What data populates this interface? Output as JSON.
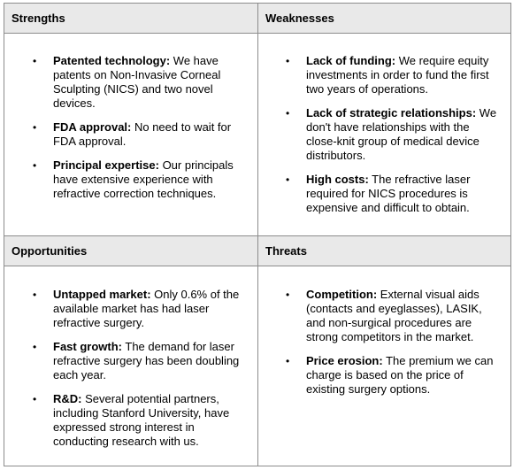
{
  "swot": {
    "strengths": {
      "title": "Strengths",
      "items": [
        {
          "term": "Patented technology:",
          "text": " We have patents on Non-Invasive Corneal Sculpting (NICS) and two novel devices."
        },
        {
          "term": "FDA approval:",
          "text": " No need to wait for FDA approval."
        },
        {
          "term": "Principal expertise:",
          "text": " Our principals have extensive experience with refractive correction techniques."
        }
      ]
    },
    "weaknesses": {
      "title": "Weaknesses",
      "items": [
        {
          "term": "Lack of funding:",
          "text": " We require equity investments in order to fund the first two years of operations."
        },
        {
          "term": "Lack of strategic relationships:",
          "text": " We don't have relationships with the close-knit group of medical device distributors."
        },
        {
          "term": "High costs:",
          "text": " The refractive laser required for NICS procedures is expensive and difficult to obtain."
        }
      ]
    },
    "opportunities": {
      "title": "Opportunities",
      "items": [
        {
          "term": "Untapped market:",
          "text": " Only 0.6% of the available market has had laser refractive surgery."
        },
        {
          "term": "Fast growth:",
          "text": " The demand for laser refractive surgery has been doubling each year."
        },
        {
          "term": "R&D:",
          "text": " Several potential partners, including Stanford University, have expressed strong interest in conducting research with us."
        }
      ]
    },
    "threats": {
      "title": "Threats",
      "items": [
        {
          "term": "Competition:",
          "text": " External visual aids (contacts and eyeglasses), LASIK, and non-surgical procedures are strong competitors in the market."
        },
        {
          "term": "Price erosion:",
          "text": " The premium we can charge is based on the price of existing surgery options."
        }
      ]
    },
    "bullet_char": "•"
  }
}
